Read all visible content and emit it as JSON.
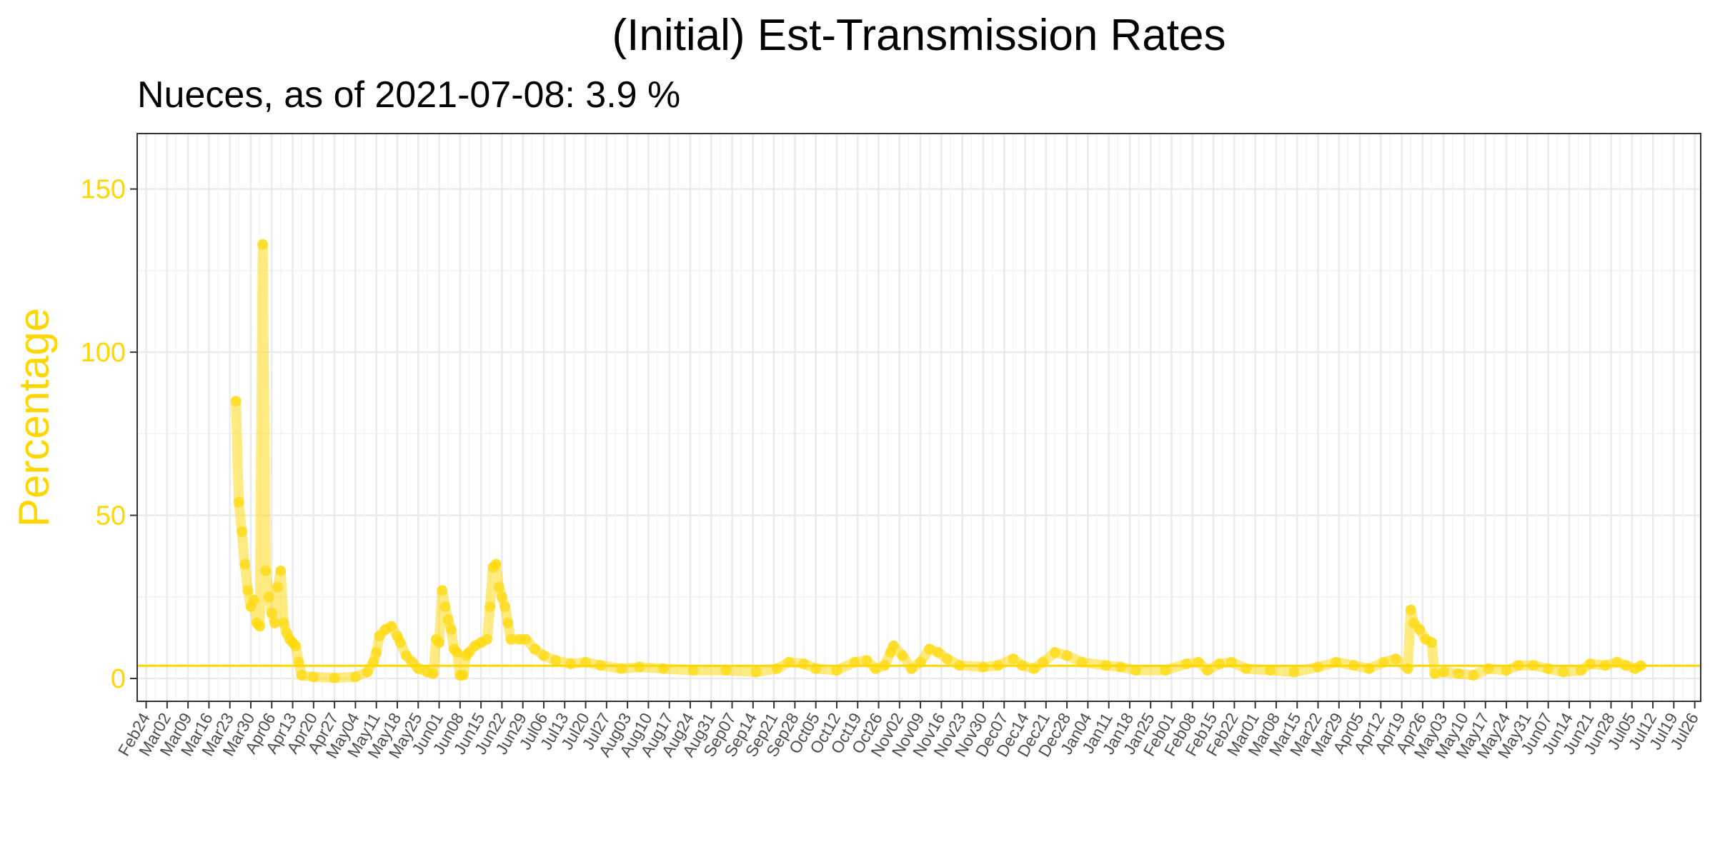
{
  "chart_data": {
    "type": "line",
    "title": "(Initial) Est-Transmission Rates",
    "subtitle": "Nueces, as of 2021-07-08:  3.9 %",
    "xlabel": "",
    "ylabel": "Percentage",
    "ylim": [
      -7,
      167
    ],
    "xlim": [
      "2020-02-21",
      "2021-07-28"
    ],
    "yticks": [
      0,
      50,
      100,
      150
    ],
    "grid": true,
    "reference_line": 3.9,
    "color": "#FFD700",
    "x_tick_labels": [
      "Feb24",
      "Mar02",
      "Mar09",
      "Mar16",
      "Mar23",
      "Mar30",
      "Apr06",
      "Apr13",
      "Apr20",
      "Apr27",
      "May04",
      "May11",
      "May18",
      "May25",
      "Jun01",
      "Jun08",
      "Jun15",
      "Jun22",
      "Jun29",
      "Jul06",
      "Jul13",
      "Jul20",
      "Jul27",
      "Aug03",
      "Aug10",
      "Aug17",
      "Aug24",
      "Aug31",
      "Sep07",
      "Sep14",
      "Sep21",
      "Sep28",
      "Oct05",
      "Oct12",
      "Oct19",
      "Oct26",
      "Nov02",
      "Nov09",
      "Nov16",
      "Nov23",
      "Nov30",
      "Dec07",
      "Dec14",
      "Dec21",
      "Dec28",
      "Jan04",
      "Jan11",
      "Jan18",
      "Jan25",
      "Feb01",
      "Feb08",
      "Feb15",
      "Feb22",
      "Mar01",
      "Mar08",
      "Mar15",
      "Mar22",
      "Mar29",
      "Apr05",
      "Apr12",
      "Apr19",
      "Apr26",
      "May03",
      "May10",
      "May17",
      "May24",
      "May31",
      "Jun07",
      "Jun14",
      "Jun21",
      "Jun28",
      "Jul05",
      "Jul12",
      "Jul19",
      "Jul26"
    ],
    "x_tick_dates": [
      "2020-02-24",
      "2020-03-02",
      "2020-03-09",
      "2020-03-16",
      "2020-03-23",
      "2020-03-30",
      "2020-04-06",
      "2020-04-13",
      "2020-04-20",
      "2020-04-27",
      "2020-05-04",
      "2020-05-11",
      "2020-05-18",
      "2020-05-25",
      "2020-06-01",
      "2020-06-08",
      "2020-06-15",
      "2020-06-22",
      "2020-06-29",
      "2020-07-06",
      "2020-07-13",
      "2020-07-20",
      "2020-07-27",
      "2020-08-03",
      "2020-08-10",
      "2020-08-17",
      "2020-08-24",
      "2020-08-31",
      "2020-09-07",
      "2020-09-14",
      "2020-09-21",
      "2020-09-28",
      "2020-10-05",
      "2020-10-12",
      "2020-10-19",
      "2020-10-26",
      "2020-11-02",
      "2020-11-09",
      "2020-11-16",
      "2020-11-23",
      "2020-11-30",
      "2020-12-07",
      "2020-12-14",
      "2020-12-21",
      "2020-12-28",
      "2021-01-04",
      "2021-01-11",
      "2021-01-18",
      "2021-01-25",
      "2021-02-01",
      "2021-02-08",
      "2021-02-15",
      "2021-02-22",
      "2021-03-01",
      "2021-03-08",
      "2021-03-15",
      "2021-03-22",
      "2021-03-29",
      "2021-04-05",
      "2021-04-12",
      "2021-04-19",
      "2021-04-26",
      "2021-05-03",
      "2021-05-10",
      "2021-05-17",
      "2021-05-24",
      "2021-05-31",
      "2021-06-07",
      "2021-06-14",
      "2021-06-21",
      "2021-06-28",
      "2021-07-05",
      "2021-07-12",
      "2021-07-19",
      "2021-07-26"
    ],
    "series": [
      {
        "points": [
          [
            "2020-03-25",
            85
          ],
          [
            "2020-03-26",
            54
          ],
          [
            "2020-03-27",
            45
          ],
          [
            "2020-03-28",
            35
          ],
          [
            "2020-03-29",
            27
          ],
          [
            "2020-03-30",
            22
          ],
          [
            "2020-03-31",
            24
          ],
          [
            "2020-04-01",
            17
          ],
          [
            "2020-04-02",
            16
          ],
          [
            "2020-04-03",
            133
          ],
          [
            "2020-04-04",
            33
          ],
          [
            "2020-04-05",
            25
          ],
          [
            "2020-04-06",
            20
          ],
          [
            "2020-04-07",
            17
          ],
          [
            "2020-04-08",
            28
          ],
          [
            "2020-04-09",
            33
          ],
          [
            "2020-04-10",
            17
          ],
          [
            "2020-04-11",
            14
          ],
          [
            "2020-04-12",
            12
          ],
          [
            "2020-04-13",
            11
          ],
          [
            "2020-04-14",
            10
          ],
          [
            "2020-04-15",
            5
          ],
          [
            "2020-04-16",
            1
          ],
          [
            "2020-04-20",
            0.5
          ],
          [
            "2020-04-27",
            0.2
          ],
          [
            "2020-05-04",
            0.5
          ],
          [
            "2020-05-08",
            2
          ],
          [
            "2020-05-10",
            5
          ],
          [
            "2020-05-11",
            8
          ],
          [
            "2020-05-12",
            13
          ],
          [
            "2020-05-14",
            15
          ],
          [
            "2020-05-16",
            16
          ],
          [
            "2020-05-18",
            13
          ],
          [
            "2020-05-19",
            11
          ],
          [
            "2020-05-21",
            7
          ],
          [
            "2020-05-23",
            5
          ],
          [
            "2020-05-25",
            3
          ],
          [
            "2020-05-28",
            2
          ],
          [
            "2020-05-30",
            1.5
          ],
          [
            "2020-05-31",
            12
          ],
          [
            "2020-06-01",
            11
          ],
          [
            "2020-06-02",
            27
          ],
          [
            "2020-06-03",
            22
          ],
          [
            "2020-06-04",
            18
          ],
          [
            "2020-06-05",
            15
          ],
          [
            "2020-06-06",
            9
          ],
          [
            "2020-06-07",
            8
          ],
          [
            "2020-06-08",
            1
          ],
          [
            "2020-06-09",
            1
          ],
          [
            "2020-06-10",
            7
          ],
          [
            "2020-06-11",
            8
          ],
          [
            "2020-06-13",
            10
          ],
          [
            "2020-06-15",
            11
          ],
          [
            "2020-06-17",
            12
          ],
          [
            "2020-06-18",
            22
          ],
          [
            "2020-06-19",
            34
          ],
          [
            "2020-06-20",
            35
          ],
          [
            "2020-06-21",
            28
          ],
          [
            "2020-06-22",
            25
          ],
          [
            "2020-06-23",
            22
          ],
          [
            "2020-06-24",
            17
          ],
          [
            "2020-06-25",
            12
          ],
          [
            "2020-06-28",
            12
          ],
          [
            "2020-06-30",
            12
          ],
          [
            "2020-07-03",
            9
          ],
          [
            "2020-07-06",
            7
          ],
          [
            "2020-07-10",
            5.5
          ],
          [
            "2020-07-15",
            4.5
          ],
          [
            "2020-07-20",
            5
          ],
          [
            "2020-07-25",
            4
          ],
          [
            "2020-08-01",
            3
          ],
          [
            "2020-08-07",
            3.5
          ],
          [
            "2020-08-15",
            3
          ],
          [
            "2020-08-25",
            2.5
          ],
          [
            "2020-09-05",
            2.5
          ],
          [
            "2020-09-15",
            2
          ],
          [
            "2020-09-22",
            3
          ],
          [
            "2020-09-26",
            5
          ],
          [
            "2020-10-01",
            4.5
          ],
          [
            "2020-10-05",
            3
          ],
          [
            "2020-10-12",
            2.5
          ],
          [
            "2020-10-18",
            5
          ],
          [
            "2020-10-22",
            5.5
          ],
          [
            "2020-10-25",
            3
          ],
          [
            "2020-10-28",
            4
          ],
          [
            "2020-10-30",
            8
          ],
          [
            "2020-10-31",
            10
          ],
          [
            "2020-11-03",
            7
          ],
          [
            "2020-11-06",
            3
          ],
          [
            "2020-11-09",
            5
          ],
          [
            "2020-11-12",
            9
          ],
          [
            "2020-11-15",
            8
          ],
          [
            "2020-11-18",
            6
          ],
          [
            "2020-11-22",
            4
          ],
          [
            "2020-11-30",
            3.5
          ],
          [
            "2020-12-05",
            4
          ],
          [
            "2020-12-10",
            6
          ],
          [
            "2020-12-13",
            4
          ],
          [
            "2020-12-17",
            3
          ],
          [
            "2020-12-20",
            5
          ],
          [
            "2020-12-24",
            8
          ],
          [
            "2020-12-28",
            7
          ],
          [
            "2021-01-02",
            5
          ],
          [
            "2021-01-10",
            4
          ],
          [
            "2021-01-15",
            3.5
          ],
          [
            "2021-01-20",
            2.5
          ],
          [
            "2021-01-30",
            2.5
          ],
          [
            "2021-02-06",
            4.5
          ],
          [
            "2021-02-10",
            5
          ],
          [
            "2021-02-13",
            2.5
          ],
          [
            "2021-02-17",
            4.5
          ],
          [
            "2021-02-21",
            5
          ],
          [
            "2021-02-26",
            3
          ],
          [
            "2021-03-06",
            2.5
          ],
          [
            "2021-03-14",
            2
          ],
          [
            "2021-03-22",
            3.5
          ],
          [
            "2021-03-28",
            5
          ],
          [
            "2021-04-03",
            4
          ],
          [
            "2021-04-08",
            3
          ],
          [
            "2021-04-13",
            5
          ],
          [
            "2021-04-17",
            6
          ],
          [
            "2021-04-21",
            3
          ],
          [
            "2021-04-22",
            21
          ],
          [
            "2021-04-23",
            17
          ],
          [
            "2021-04-25",
            15
          ],
          [
            "2021-04-27",
            12
          ],
          [
            "2021-04-29",
            11
          ],
          [
            "2021-04-30",
            1.5
          ],
          [
            "2021-05-03",
            2
          ],
          [
            "2021-05-08",
            1.5
          ],
          [
            "2021-05-13",
            1
          ],
          [
            "2021-05-18",
            3
          ],
          [
            "2021-05-24",
            2.5
          ],
          [
            "2021-05-28",
            4
          ],
          [
            "2021-06-02",
            4
          ],
          [
            "2021-06-07",
            3
          ],
          [
            "2021-06-12",
            2
          ],
          [
            "2021-06-18",
            2.5
          ],
          [
            "2021-06-21",
            4.5
          ],
          [
            "2021-06-26",
            4
          ],
          [
            "2021-06-30",
            5
          ],
          [
            "2021-07-03",
            4
          ],
          [
            "2021-07-06",
            3
          ],
          [
            "2021-07-08",
            3.9
          ]
        ]
      }
    ]
  }
}
